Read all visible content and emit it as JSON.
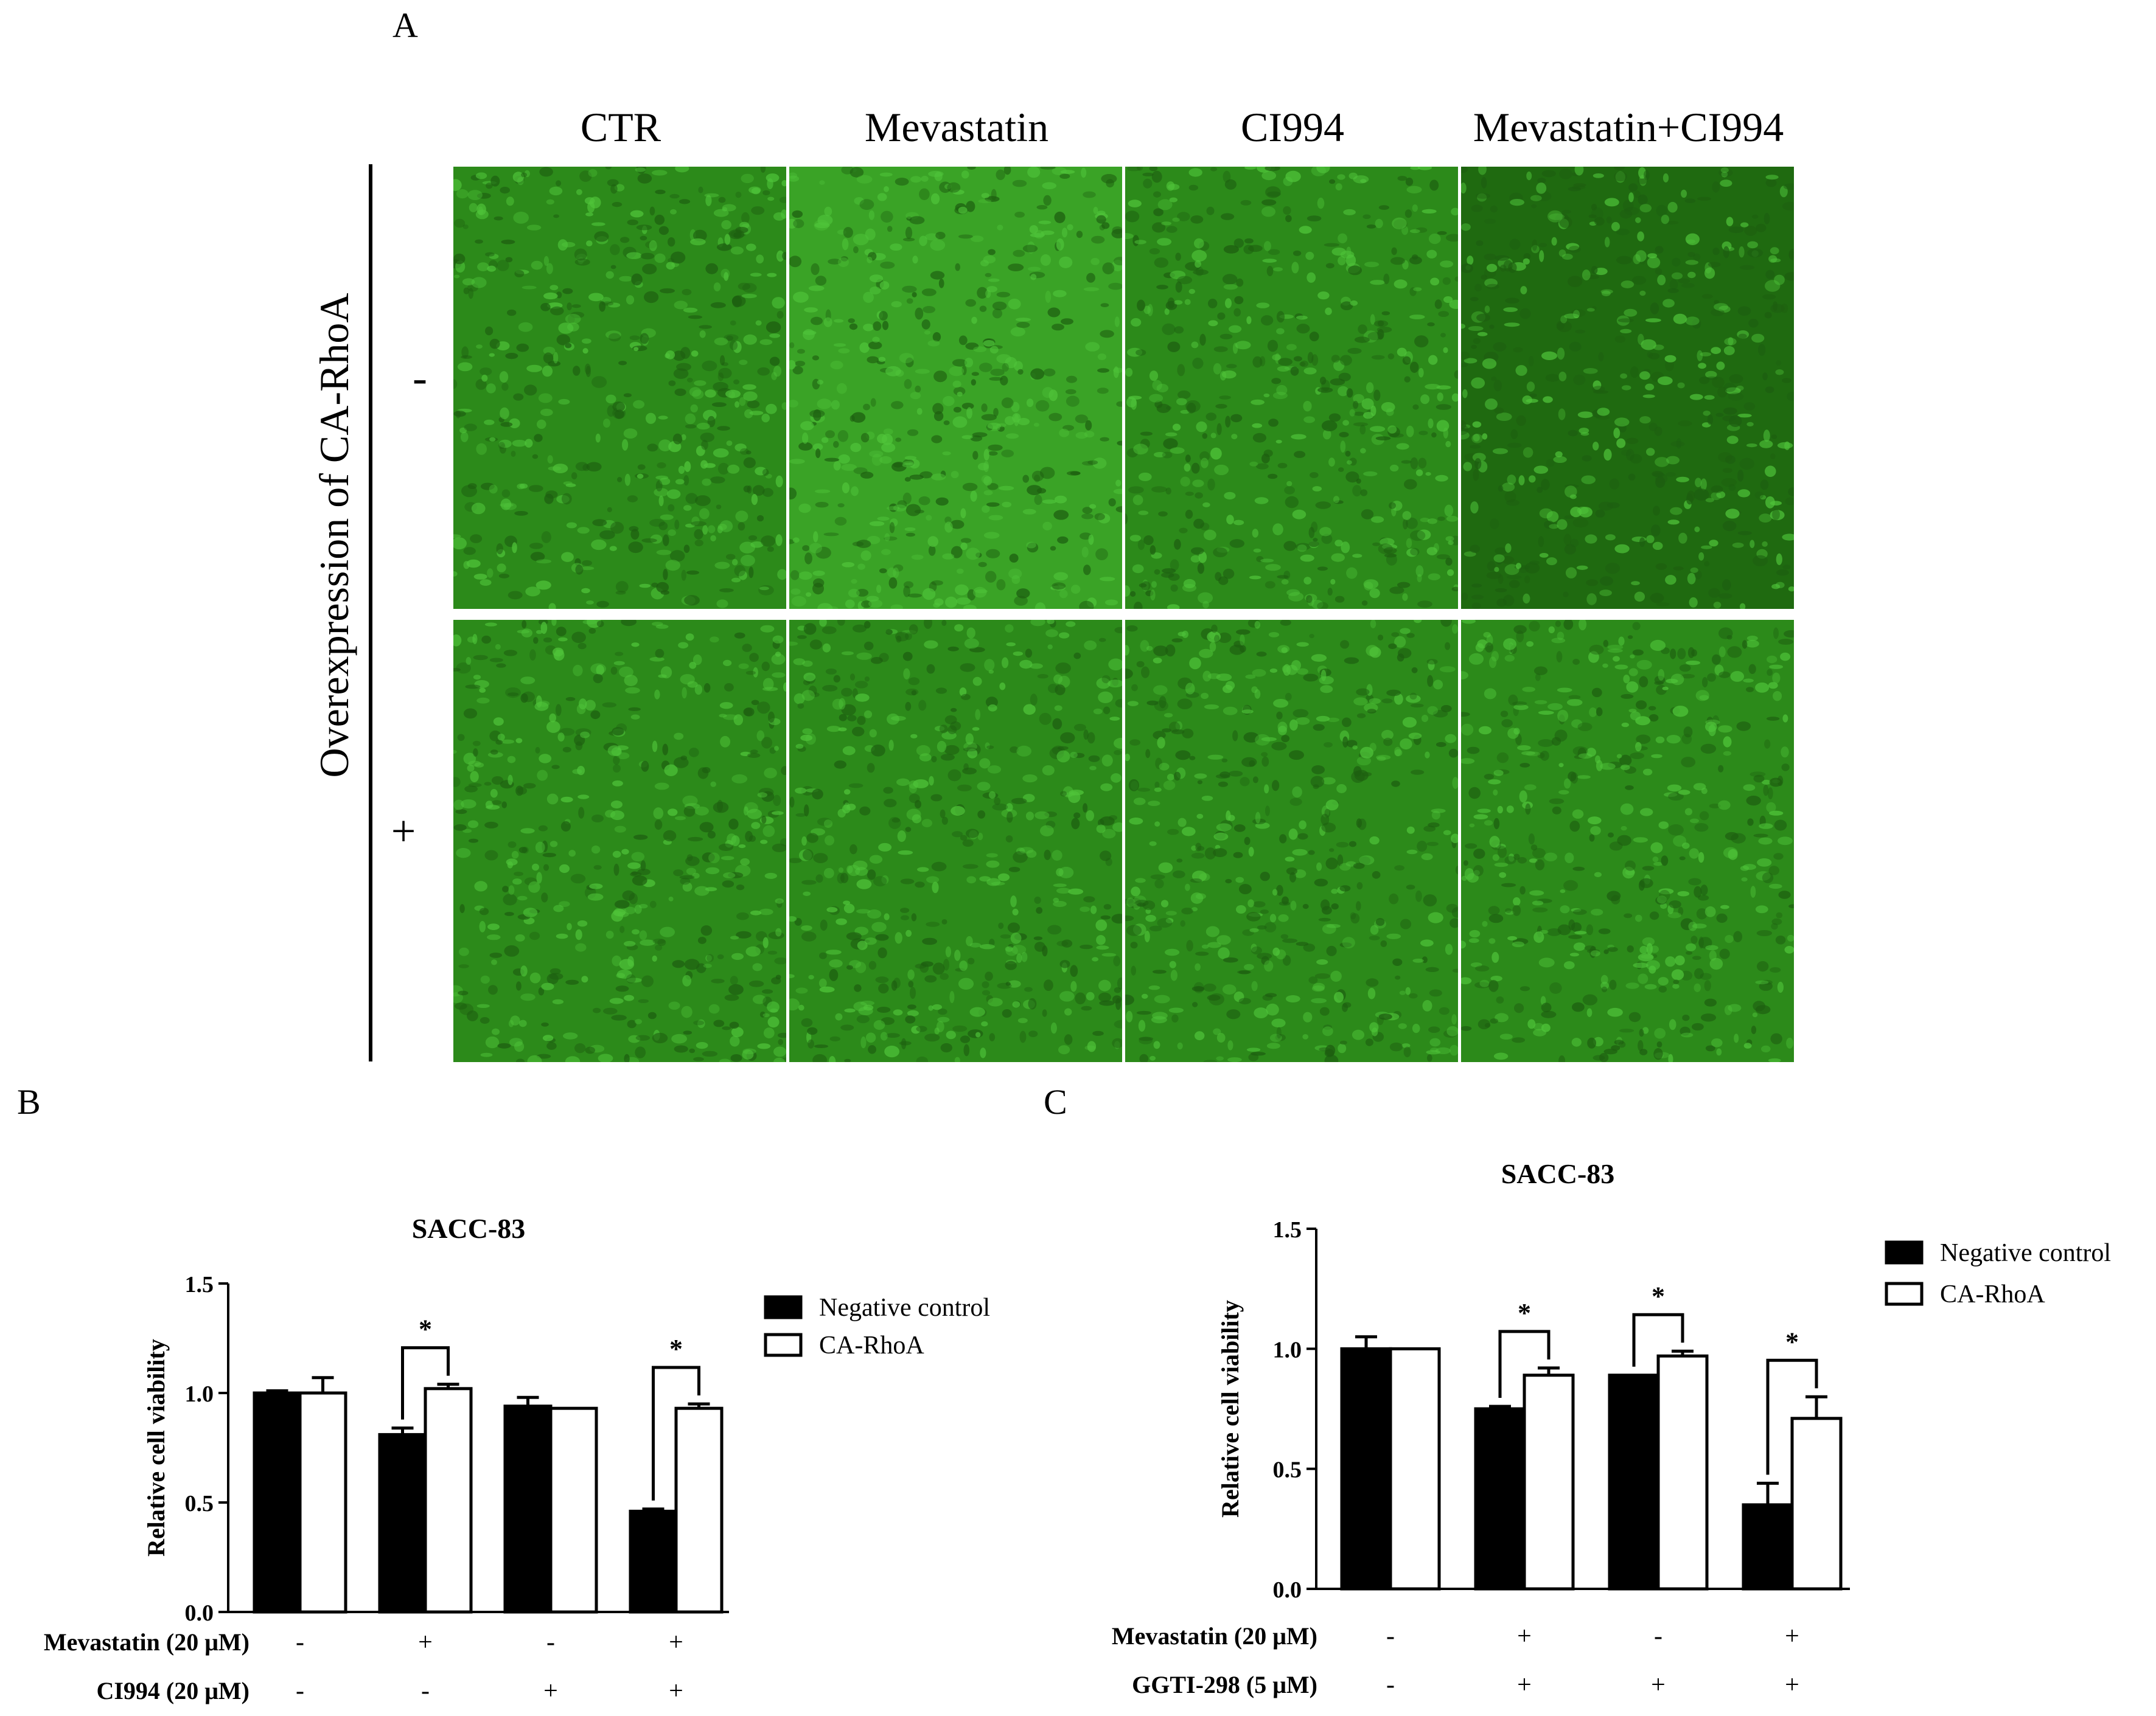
{
  "panelA": {
    "letter": "A",
    "columns": [
      "CTR",
      "Mevastatin",
      "CI994",
      "Mevastatin+CI994"
    ],
    "row_axis_label": "Overexpression of CA-RhoA",
    "rows": [
      "-",
      "+"
    ],
    "image_color": "#2f8f1c"
  },
  "panelB": {
    "letter": "B"
  },
  "panelC": {
    "letter": "C"
  },
  "chart_data": [
    {
      "type": "bar",
      "title": "SACC-83",
      "ylabel": "Relative cell viability",
      "xlabel": "",
      "ylim": [
        0,
        1.5
      ],
      "yticks": [
        "0.0",
        "0.5",
        "1.0",
        "1.5"
      ],
      "groups": 4,
      "series": [
        {
          "name": "Negative control",
          "fill": "#000000",
          "values": [
            1.0,
            0.81,
            0.94,
            0.46
          ],
          "errors": [
            0.01,
            0.03,
            0.04,
            0.01
          ]
        },
        {
          "name": "CA-RhoA",
          "fill": "#ffffff",
          "values": [
            1.0,
            1.02,
            0.93,
            0.93
          ],
          "errors": [
            0.07,
            0.02,
            0.0,
            0.02
          ]
        }
      ],
      "significance": [
        "",
        "*",
        "",
        "*"
      ],
      "conditions": [
        {
          "label": "Mevastatin (20 μM)",
          "values": [
            "-",
            "+",
            "-",
            "+"
          ]
        },
        {
          "label": "CI994 (20 μM)",
          "values": [
            "-",
            "-",
            "+",
            "+"
          ]
        }
      ],
      "legend": "right"
    },
    {
      "type": "bar",
      "title": "SACC-83",
      "ylabel": "Relative cell viability",
      "xlabel": "",
      "ylim": [
        0,
        1.5
      ],
      "yticks": [
        "0.0",
        "0.5",
        "1.0",
        "1.5"
      ],
      "groups": 4,
      "series": [
        {
          "name": "Negative control",
          "fill": "#000000",
          "values": [
            1.0,
            0.75,
            0.89,
            0.35
          ],
          "errors": [
            0.05,
            0.01,
            0.0,
            0.09
          ]
        },
        {
          "name": "CA-RhoA",
          "fill": "#ffffff",
          "values": [
            1.0,
            0.89,
            0.97,
            0.71
          ],
          "errors": [
            0.0,
            0.03,
            0.02,
            0.09
          ]
        }
      ],
      "significance": [
        "",
        "*",
        "*",
        "*"
      ],
      "conditions": [
        {
          "label": "Mevastatin (20 μM)",
          "values": [
            "-",
            "+",
            "-",
            "+"
          ]
        },
        {
          "label": "GGTI-298 (5 μM)",
          "values": [
            "-",
            "+",
            "+",
            "+"
          ]
        }
      ],
      "legend": "top-right"
    }
  ]
}
